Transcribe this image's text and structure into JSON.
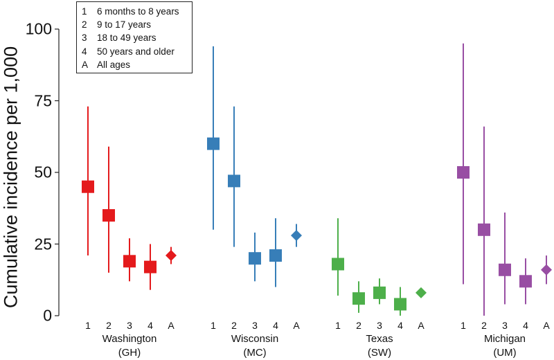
{
  "chart_data": {
    "type": "scatter",
    "ylabel": "Cumulative incidence per 1,000",
    "ylim": [
      0,
      100
    ],
    "yticks": [
      "0",
      "25",
      "50",
      "75",
      "100"
    ],
    "legend": {
      "placement": "top-left",
      "entries": [
        {
          "code": "1",
          "label": "6 months to 8 years"
        },
        {
          "code": "2",
          "label": "9 to 17 years"
        },
        {
          "code": "3",
          "label": "18 to 49 years"
        },
        {
          "code": "4",
          "label": "50 years and older"
        },
        {
          "code": "A",
          "label": "All ages"
        }
      ]
    },
    "categories": [
      "1",
      "2",
      "3",
      "4",
      "A"
    ],
    "series": [
      {
        "name": "Washington",
        "code": "(GH)",
        "color": "#e41a1c",
        "values": [
          45,
          35,
          19,
          17,
          21
        ],
        "lower": [
          21,
          15,
          12,
          9,
          18
        ],
        "upper": [
          73,
          59,
          27,
          25,
          24
        ]
      },
      {
        "name": "Wisconsin",
        "code": "(MC)",
        "color": "#377eb8",
        "values": [
          60,
          47,
          20,
          21,
          28
        ],
        "lower": [
          30,
          24,
          12,
          10,
          24
        ],
        "upper": [
          94,
          73,
          29,
          34,
          32
        ]
      },
      {
        "name": "Texas",
        "code": "(SW)",
        "color": "#4daf4a",
        "values": [
          18,
          6,
          8,
          4,
          8
        ],
        "lower": [
          7,
          1,
          4,
          0,
          7
        ],
        "upper": [
          34,
          12,
          13,
          10,
          9
        ]
      },
      {
        "name": "Michigan",
        "code": "(UM)",
        "color": "#984ea3",
        "values": [
          50,
          30,
          16,
          12,
          16
        ],
        "lower": [
          11,
          0,
          4,
          4,
          11
        ],
        "upper": [
          95,
          66,
          36,
          20,
          21
        ]
      }
    ]
  }
}
